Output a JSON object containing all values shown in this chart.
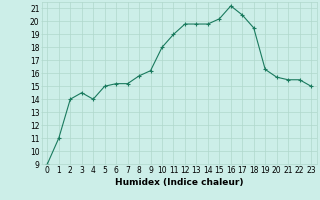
{
  "x": [
    0,
    1,
    2,
    3,
    4,
    5,
    6,
    7,
    8,
    9,
    10,
    11,
    12,
    13,
    14,
    15,
    16,
    17,
    18,
    19,
    20,
    21,
    22,
    23
  ],
  "y": [
    9,
    11,
    14,
    14.5,
    14,
    15,
    15.2,
    15.2,
    15.8,
    16.2,
    18,
    19,
    19.8,
    19.8,
    19.8,
    20.2,
    21.2,
    20.5,
    19.5,
    16.3,
    15.7,
    15.5,
    15.5,
    15
  ],
  "line_color": "#1a7a5e",
  "marker": "+",
  "marker_size": 3.0,
  "bg_color": "#cceee8",
  "grid_color": "#b0d8cc",
  "xlabel": "Humidex (Indice chaleur)",
  "ylim": [
    9,
    21.5
  ],
  "xlim": [
    -0.5,
    23.5
  ],
  "yticks": [
    9,
    10,
    11,
    12,
    13,
    14,
    15,
    16,
    17,
    18,
    19,
    20,
    21
  ],
  "xticks": [
    0,
    1,
    2,
    3,
    4,
    5,
    6,
    7,
    8,
    9,
    10,
    11,
    12,
    13,
    14,
    15,
    16,
    17,
    18,
    19,
    20,
    21,
    22,
    23
  ],
  "xlabel_fontsize": 6.5,
  "tick_fontsize": 5.5
}
